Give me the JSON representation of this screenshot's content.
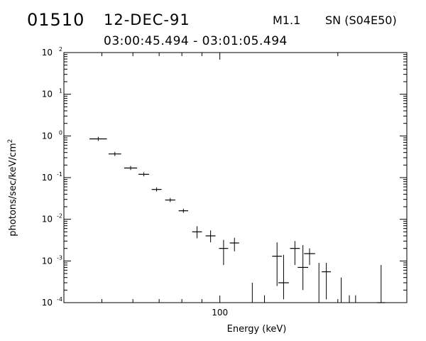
{
  "header": {
    "event_id": "01510",
    "date": "12-DEC-91",
    "flare_class": "M1.1",
    "location": "SN (S04E50)",
    "time_range": "03:00:45.494 - 03:01:05.494"
  },
  "chart_data": {
    "type": "scatter",
    "title": "",
    "xlabel": "Energy (keV)",
    "ylabel_base": "photons/sec/keV/cm",
    "ylabel_exp": "2",
    "x_scale": "log",
    "y_scale": "log",
    "xlim": [
      40,
      300
    ],
    "ylim": [
      0.0001,
      100
    ],
    "x_ticks": [
      {
        "value": 100,
        "label": "100"
      }
    ],
    "y_ticks": [
      {
        "value": 0.0001,
        "base": "10",
        "exp": "-4"
      },
      {
        "value": 0.001,
        "base": "10",
        "exp": "-3"
      },
      {
        "value": 0.01,
        "base": "10",
        "exp": "-2"
      },
      {
        "value": 0.1,
        "base": "10",
        "exp": "-1"
      },
      {
        "value": 1,
        "base": "10",
        "exp": "0"
      },
      {
        "value": 10,
        "base": "10",
        "exp": "1"
      },
      {
        "value": 100,
        "base": "10",
        "exp": "2"
      }
    ],
    "grid": false,
    "marker": "cross with error bars",
    "points": [
      {
        "x_lo": 46.5,
        "x_hi": 51.5,
        "y": 0.85
      },
      {
        "x_lo": 52.0,
        "x_hi": 56.0,
        "y": 0.37
      },
      {
        "x_lo": 57.0,
        "x_hi": 61.5,
        "y": 0.17
      },
      {
        "x_lo": 62.0,
        "x_hi": 66.0,
        "y": 0.12
      },
      {
        "x_lo": 67.0,
        "x_hi": 71.0,
        "y": 0.052
      },
      {
        "x_lo": 72.5,
        "x_hi": 77.0,
        "y": 0.029
      },
      {
        "x_lo": 78.5,
        "x_hi": 83.0,
        "y": 0.016
      },
      {
        "x_lo": 85.0,
        "x_hi": 90.0,
        "y": 0.005,
        "y_lo": 0.0035,
        "y_hi": 0.0068
      },
      {
        "x_lo": 92.0,
        "x_hi": 97.5,
        "y": 0.004,
        "y_lo": 0.0028,
        "y_hi": 0.0054
      },
      {
        "x_lo": 99.5,
        "x_hi": 105.0,
        "y": 0.002,
        "y_lo": 0.0008,
        "y_hi": 0.0032
      },
      {
        "x_lo": 106.0,
        "x_hi": 112.0,
        "y": 0.0027,
        "y_lo": 0.0017,
        "y_hi": 0.0036
      },
      {
        "x_lo": 121.0,
        "x_hi": 121.0,
        "y_hi": 0.0003
      },
      {
        "x_lo": 130.0,
        "x_hi": 130.0,
        "y_hi": 0.00015
      },
      {
        "x_lo": 136.0,
        "x_hi": 144.0,
        "y": 0.0013,
        "y_lo": 0.00025,
        "y_hi": 0.0028
      },
      {
        "x_lo": 141.0,
        "x_hi": 150.0,
        "y": 0.0003,
        "y_lo": 0.00012,
        "y_hi": 0.0014
      },
      {
        "x_lo": 151.0,
        "x_hi": 160.0,
        "y": 0.002,
        "y_lo": 0.0008,
        "y_hi": 0.003
      },
      {
        "x_lo": 158.0,
        "x_hi": 168.0,
        "y": 0.0007,
        "y_lo": 0.0002,
        "y_hi": 0.0024
      },
      {
        "x_lo": 164.0,
        "x_hi": 175.0,
        "y": 0.0015,
        "y_lo": 0.0008,
        "y_hi": 0.002
      },
      {
        "x_lo": 179.0,
        "x_hi": 179.0,
        "y_hi": 0.0009
      },
      {
        "x_lo": 182.0,
        "x_hi": 192.0,
        "y": 0.00055,
        "y_lo": 0.00012,
        "y_hi": 0.0009
      },
      {
        "x_lo": 204.0,
        "x_hi": 204.0,
        "y_hi": 0.0004
      },
      {
        "x_lo": 214.0,
        "x_hi": 214.0,
        "y_hi": 0.00015
      },
      {
        "x_lo": 222.0,
        "x_hi": 222.0,
        "y_hi": 0.00015
      },
      {
        "x_lo": 252.0,
        "x_hi": 264.0,
        "y": 0.0001,
        "y_lo": 0.0001,
        "y_hi": 0.0008
      }
    ]
  }
}
